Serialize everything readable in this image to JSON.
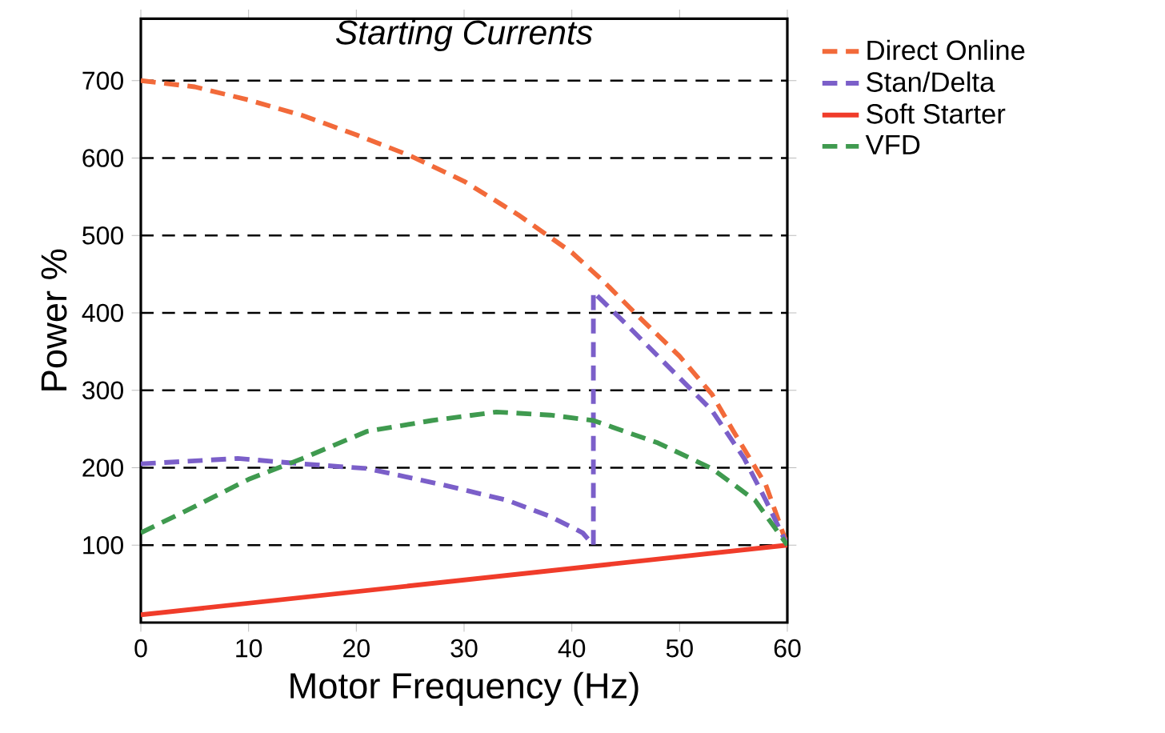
{
  "chart_data": {
    "type": "line",
    "title": "Starting Currents",
    "xlabel": "Motor Frequency (Hz)",
    "ylabel": "Power %",
    "xlim": [
      0,
      60
    ],
    "xticks": [
      0,
      10,
      20,
      30,
      40,
      50,
      60
    ],
    "ylim": [
      0,
      780
    ],
    "yticks": [
      100,
      200,
      300,
      400,
      500,
      600,
      700
    ],
    "grid": "y",
    "legend": "top right",
    "series": [
      {
        "name": "Direct Online",
        "color": "#f26a3a",
        "line_style": "dashed",
        "x": [
          0,
          5,
          10,
          15,
          20,
          25,
          30,
          35,
          40,
          43,
          46,
          50,
          53,
          55,
          58,
          60
        ],
        "values": [
          700,
          692,
          675,
          655,
          630,
          603,
          570,
          527,
          478,
          440,
          398,
          344,
          295,
          247,
          178,
          100
        ]
      },
      {
        "name": "Stan/Delta",
        "color": "#7b5fc9",
        "line_style": "dashed",
        "x": [
          0,
          9,
          15,
          21,
          28,
          34,
          38,
          41,
          42,
          42,
          45,
          50,
          53,
          56,
          58,
          60
        ],
        "values": [
          205,
          212,
          205,
          199,
          178,
          158,
          137,
          116,
          100,
          427,
          386,
          316,
          274,
          212,
          158,
          100
        ]
      },
      {
        "name": "Soft Starter",
        "color": "#f03c2a",
        "line_style": "solid",
        "x": [
          0,
          60
        ],
        "values": [
          10,
          100
        ]
      },
      {
        "name": "VFD",
        "color": "#3f9a4f",
        "line_style": "dashed",
        "x": [
          0,
          4,
          10,
          15,
          21,
          27,
          33,
          38,
          42,
          48,
          53,
          57,
          60
        ],
        "values": [
          116,
          143,
          185,
          212,
          247,
          261,
          272,
          268,
          261,
          232,
          199,
          158,
          100
        ]
      }
    ]
  }
}
